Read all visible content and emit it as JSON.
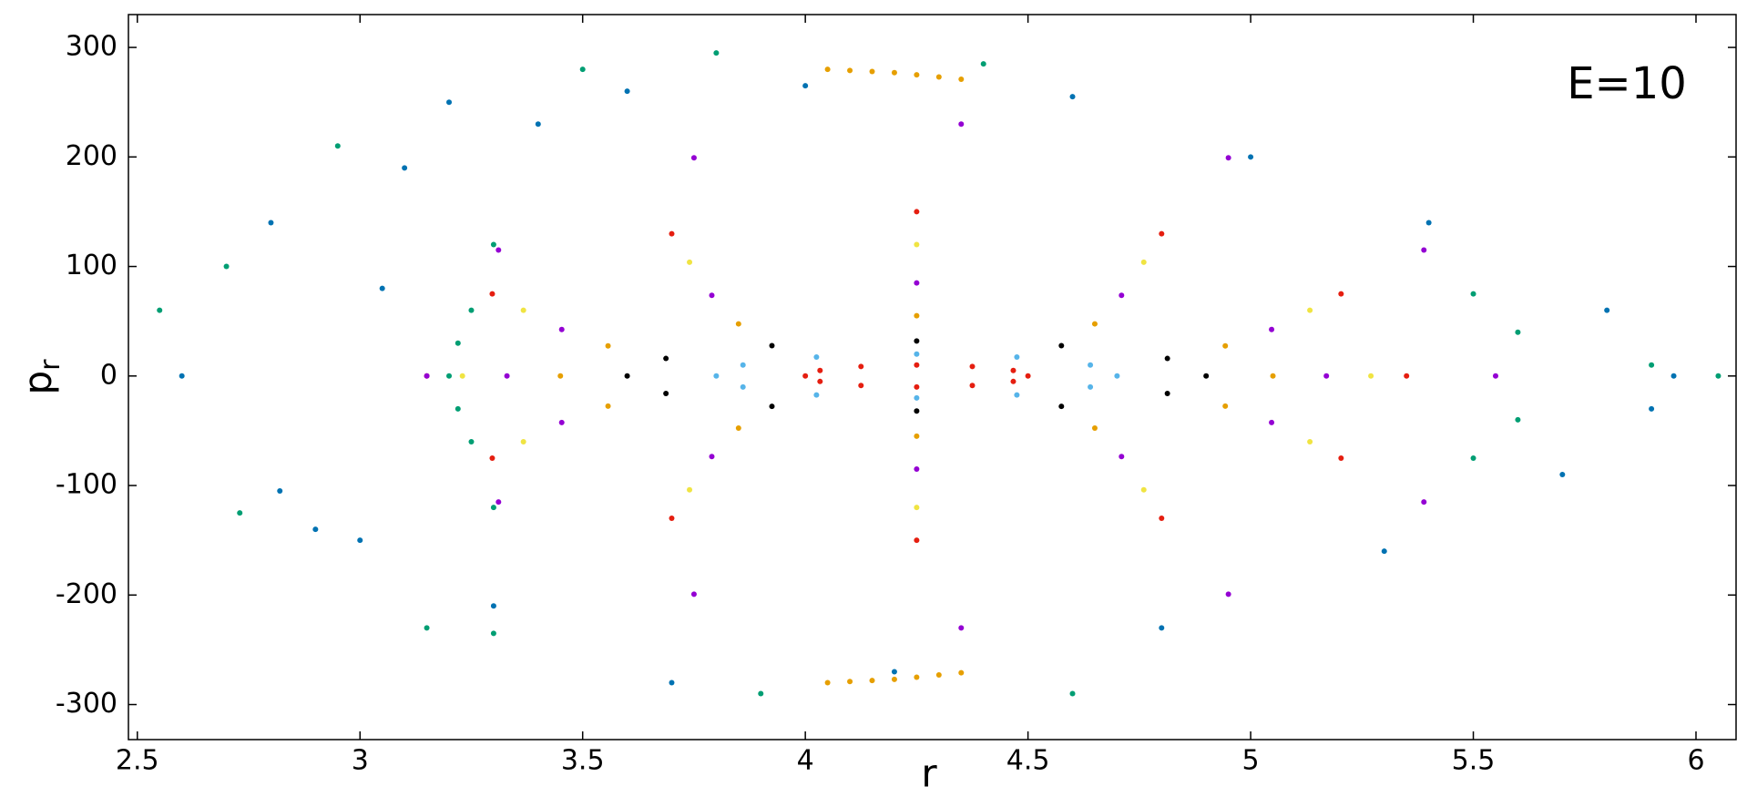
{
  "chart_data": {
    "type": "scatter",
    "annotation": "E=10",
    "xlabel": "r",
    "ylabel": "p",
    "ylabel_sub": "r",
    "xlim": [
      2.48,
      6.09
    ],
    "ylim": [
      -332,
      330
    ],
    "xticks": [
      2.5,
      3,
      3.5,
      4,
      4.5,
      5,
      5.5,
      6
    ],
    "yticks": [
      -300,
      -200,
      -100,
      0,
      100,
      200,
      300
    ],
    "grid": false,
    "series": [
      {
        "color": "#E51E10",
        "x": [
          4.5,
          4.467,
          4.375,
          4.25,
          4.125,
          4.033,
          4.0,
          4.033,
          4.125,
          4.25,
          4.375,
          4.467
        ],
        "y": [
          0,
          5,
          8.7,
          10,
          8.7,
          5,
          0,
          -5,
          -8.7,
          -10,
          -8.7,
          -5
        ]
      },
      {
        "color": "#56B4E9",
        "x": [
          4.7,
          4.64,
          4.475,
          4.25,
          4.025,
          3.86,
          3.8,
          3.86,
          4.025,
          4.25,
          4.475,
          4.64
        ],
        "y": [
          0,
          10,
          17.3,
          20,
          17.3,
          10,
          0,
          -10,
          -17.3,
          -20,
          -17.3,
          -10
        ]
      },
      {
        "color": "#000000",
        "x": [
          4.9,
          4.813,
          4.575,
          4.25,
          3.925,
          3.687,
          3.6,
          3.687,
          3.925,
          4.25,
          4.575,
          4.813
        ],
        "y": [
          0,
          16,
          27.7,
          32,
          27.7,
          16,
          0,
          -16,
          -27.7,
          -32,
          -27.7,
          -16
        ]
      },
      {
        "color": "#E69F00",
        "x": [
          5.05,
          4.943,
          4.65,
          4.25,
          3.85,
          3.557,
          3.45,
          3.557,
          3.85,
          4.25,
          4.65,
          4.943
        ],
        "y": [
          0,
          27.5,
          47.6,
          55,
          47.6,
          27.5,
          0,
          -27.5,
          -47.6,
          -55,
          -47.6,
          -27.5
        ]
      },
      {
        "color": "#9400D3",
        "x": [
          5.17,
          5.047,
          4.71,
          4.25,
          3.79,
          3.453,
          3.33,
          3.453,
          3.79,
          4.25,
          4.71,
          5.047
        ],
        "y": [
          0,
          42.5,
          73.6,
          85,
          73.6,
          42.5,
          0,
          -42.5,
          -73.6,
          -85,
          -73.6,
          -42.5
        ]
      },
      {
        "color": "#F0E442",
        "x": [
          5.27,
          5.133,
          4.76,
          4.25,
          3.74,
          3.367,
          3.23,
          3.367,
          3.74,
          4.25,
          4.76,
          5.133
        ],
        "y": [
          0,
          60,
          103.9,
          120,
          103.9,
          60,
          0,
          -60,
          -103.9,
          -120,
          -103.9,
          -60
        ]
      },
      {
        "color": "#E51E10",
        "x": [
          5.35,
          5.203,
          4.8,
          4.25,
          3.7,
          3.297,
          3.15,
          3.297,
          3.7,
          4.25,
          4.8,
          5.203
        ],
        "y": [
          0,
          75,
          129.9,
          150,
          129.9,
          75,
          0,
          -75,
          -129.9,
          -150,
          -129.9,
          -75
        ]
      },
      {
        "color": "#9400D3",
        "x": [
          5.55,
          5.389,
          4.95,
          4.35,
          3.75,
          3.311,
          3.15,
          3.311,
          3.75,
          4.35,
          4.95,
          5.389
        ],
        "y": [
          0,
          115,
          199.2,
          230,
          199.2,
          115,
          0,
          -115,
          -199.2,
          -230,
          -199.2,
          -115
        ]
      },
      {
        "color": "#E69F00",
        "x": [
          4.05,
          4.1,
          4.15,
          4.2,
          4.25,
          4.3,
          4.35,
          4.05,
          4.1,
          4.15,
          4.2,
          4.25,
          4.3,
          4.35
        ],
        "y": [
          280,
          279,
          278,
          277,
          275,
          273,
          271,
          -280,
          -279,
          -278,
          -277,
          -275,
          -273,
          -271
        ]
      },
      {
        "color": "#009E73",
        "x": [
          3.2,
          3.22,
          3.22,
          3.25,
          3.25,
          3.3,
          3.3,
          3.15,
          3.3,
          3.5,
          3.8,
          2.55,
          2.7,
          2.73,
          5.6,
          5.6,
          5.5,
          5.5,
          5.9,
          6.05,
          3.9,
          4.6,
          4.4,
          2.95
        ],
        "y": [
          0,
          30,
          -30,
          60,
          -60,
          120,
          -120,
          -230,
          -235,
          280,
          295,
          60,
          100,
          -125,
          40,
          -40,
          75,
          -75,
          10,
          0,
          -290,
          -290,
          285,
          210
        ]
      },
      {
        "color": "#0072B2",
        "x": [
          2.6,
          2.8,
          2.82,
          2.9,
          3.1,
          3.2,
          3.4,
          3.6,
          4.0,
          4.6,
          5.0,
          5.4,
          5.8,
          5.9,
          5.7,
          5.3,
          4.8,
          4.2,
          3.7,
          3.3,
          3.0,
          3.05,
          5.95
        ],
        "y": [
          0,
          140,
          -105,
          -140,
          190,
          250,
          230,
          260,
          265,
          255,
          200,
          140,
          60,
          -30,
          -90,
          -160,
          -230,
          -270,
          -280,
          -210,
          -150,
          80,
          0
        ]
      }
    ]
  }
}
